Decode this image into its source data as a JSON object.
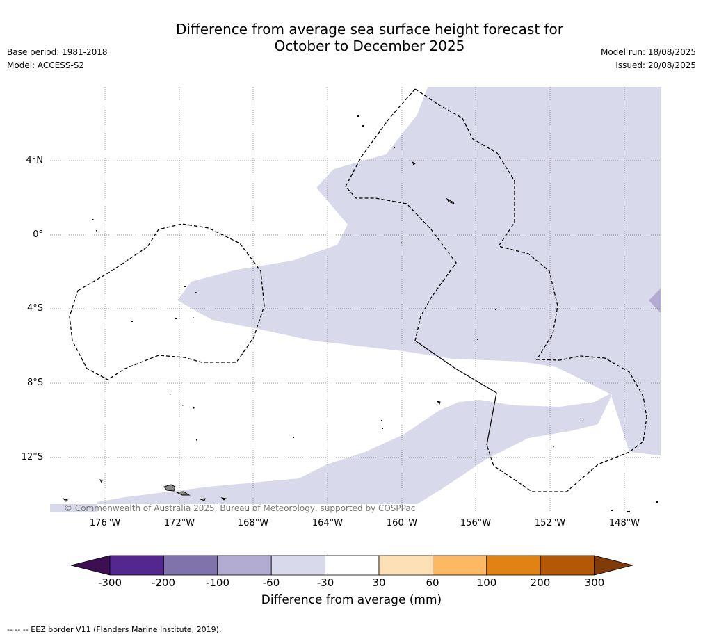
{
  "title_line1": "Difference from average sea surface height forecast for",
  "title_line2": "October to December 2025",
  "base_period": "Base period: 1981-2018",
  "model": "Model: ACCESS-S2",
  "model_run": "Model run: 18/08/2025",
  "issued": "Issued: 20/08/2025",
  "lat_labels": [
    "4°N",
    "0°",
    "4°S",
    "8°S",
    "12°S"
  ],
  "lon_labels": [
    "176°W",
    "172°W",
    "168°W",
    "164°W",
    "160°W",
    "156°W",
    "152°W",
    "148°W"
  ],
  "copyright": "© Commonwealth of Australia 2025, Bureau of Meteorology, supported by COSPPac",
  "colorbar": {
    "title": "Difference from average (mm)",
    "tick_labels": [
      "-300",
      "-200",
      "-100",
      "-60",
      "-30",
      "30",
      "60",
      "100",
      "200",
      "300"
    ],
    "colors": [
      "#3b0f52",
      "#54278f",
      "#8073ac",
      "#b2abd2",
      "#d8daeb",
      "#ffffff",
      "#fee0b6",
      "#fdb863",
      "#e08214",
      "#b35806",
      "#7f3b08"
    ]
  },
  "footnote": "--  --  -- EEZ border V11 (Flanders Marine Institute, 2019)."
}
